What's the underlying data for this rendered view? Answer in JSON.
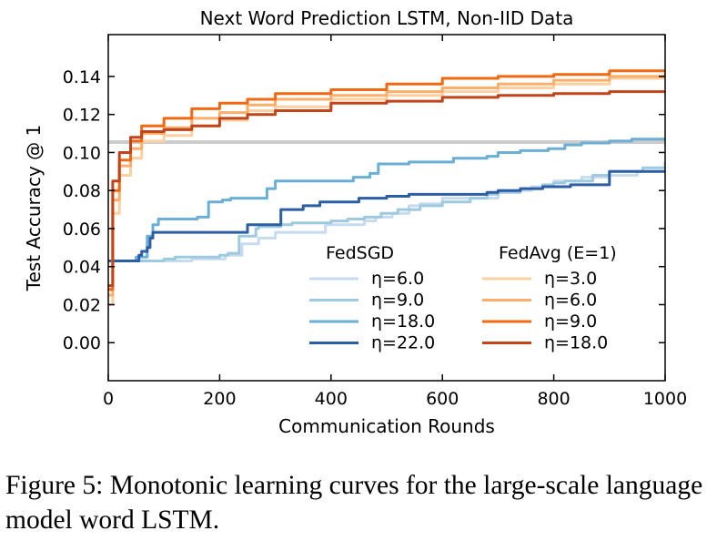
{
  "chart_data": {
    "type": "line",
    "title": "Next Word Prediction LSTM, Non-IID Data",
    "xlabel": "Communication Rounds",
    "ylabel": "Test Accuracy @ 1",
    "xlim": [
      0,
      1000
    ],
    "ylim": [
      -0.02,
      0.162
    ],
    "xticks": [
      0,
      200,
      400,
      600,
      800,
      1000
    ],
    "xtick_labels": [
      "0",
      "200",
      "400",
      "600",
      "800",
      "1000"
    ],
    "yticks": [
      0.0,
      0.02,
      0.04,
      0.06,
      0.08,
      0.1,
      0.12,
      0.14
    ],
    "ytick_labels": [
      "0.00",
      "0.02",
      "0.04",
      "0.06",
      "0.08",
      "0.10",
      "0.12",
      "0.14"
    ],
    "grid": false,
    "legend_placement": "lower-right",
    "reference_line": {
      "y": 0.1055,
      "color": "#cccccc"
    },
    "legend_groups": [
      {
        "title": "FedSGD",
        "series_indices": [
          0,
          1,
          2,
          3
        ]
      },
      {
        "title": "FedAvg (E=1)",
        "series_indices": [
          4,
          5,
          6,
          7
        ]
      }
    ],
    "series": [
      {
        "name": "η=6.0",
        "group": "FedSGD",
        "color": "#c6dbef",
        "x": [
          0,
          12,
          100,
          150,
          200,
          210,
          240,
          270,
          300,
          330,
          390,
          430,
          460,
          480,
          510,
          540,
          560,
          600,
          650,
          700,
          760,
          800,
          850,
          900,
          950,
          1000
        ],
        "y": [
          0.043,
          0.043,
          0.043,
          0.044,
          0.044,
          0.046,
          0.052,
          0.055,
          0.058,
          0.058,
          0.062,
          0.062,
          0.064,
          0.066,
          0.068,
          0.072,
          0.073,
          0.076,
          0.076,
          0.08,
          0.082,
          0.085,
          0.087,
          0.088,
          0.09,
          0.093
        ]
      },
      {
        "name": "η=9.0",
        "group": "FedSGD",
        "color": "#9ecae1",
        "x": [
          0,
          12,
          80,
          100,
          120,
          180,
          190,
          200,
          215,
          235,
          265,
          270,
          310,
          330,
          400,
          430,
          460,
          490,
          520,
          560,
          600,
          650,
          680,
          700,
          740,
          780,
          800,
          820,
          870,
          900,
          960,
          1000
        ],
        "y": [
          0.043,
          0.043,
          0.043,
          0.044,
          0.045,
          0.045,
          0.045,
          0.046,
          0.047,
          0.056,
          0.06,
          0.061,
          0.062,
          0.063,
          0.064,
          0.065,
          0.066,
          0.068,
          0.07,
          0.072,
          0.074,
          0.076,
          0.078,
          0.079,
          0.081,
          0.083,
          0.084,
          0.085,
          0.088,
          0.09,
          0.092,
          0.095
        ]
      },
      {
        "name": "η=18.0",
        "group": "FedSGD",
        "color": "#6baed6",
        "x": [
          0,
          12,
          50,
          70,
          80,
          90,
          110,
          125,
          160,
          180,
          205,
          220,
          285,
          300,
          340,
          380,
          410,
          440,
          470,
          485,
          540,
          600,
          620,
          680,
          700,
          740,
          790,
          820,
          850,
          870,
          900,
          940,
          1000
        ],
        "y": [
          0.043,
          0.043,
          0.045,
          0.056,
          0.062,
          0.065,
          0.065,
          0.065,
          0.066,
          0.074,
          0.075,
          0.076,
          0.081,
          0.085,
          0.085,
          0.085,
          0.085,
          0.087,
          0.089,
          0.094,
          0.095,
          0.095,
          0.097,
          0.098,
          0.1,
          0.101,
          0.102,
          0.104,
          0.105,
          0.105,
          0.106,
          0.107,
          0.107
        ]
      },
      {
        "name": "η=22.0",
        "group": "FedSGD",
        "color": "#2c5ea5",
        "x": [
          0,
          12,
          45,
          55,
          60,
          70,
          75,
          80,
          240,
          250,
          310,
          350,
          380,
          450,
          500,
          540,
          580,
          640,
          680,
          700,
          740,
          780,
          800,
          830,
          860,
          900,
          1000
        ],
        "y": [
          0.043,
          0.043,
          0.043,
          0.046,
          0.048,
          0.05,
          0.055,
          0.058,
          0.058,
          0.062,
          0.07,
          0.072,
          0.074,
          0.076,
          0.077,
          0.078,
          0.078,
          0.078,
          0.079,
          0.08,
          0.081,
          0.082,
          0.082,
          0.083,
          0.083,
          0.09,
          0.09
        ]
      },
      {
        "name": "η=3.0",
        "group": "FedAvg (E=1)",
        "color": "#fdd0a2",
        "x": [
          0,
          8,
          20,
          40,
          60,
          100,
          150,
          200,
          250,
          300,
          400,
          500,
          600,
          700,
          800,
          900,
          1000
        ],
        "y": [
          0.02,
          0.068,
          0.088,
          0.097,
          0.106,
          0.109,
          0.114,
          0.117,
          0.122,
          0.124,
          0.128,
          0.13,
          0.132,
          0.134,
          0.136,
          0.139,
          0.141
        ]
      },
      {
        "name": "η=6.0",
        "group": "FedAvg (E=1)",
        "color": "#fdae6b",
        "x": [
          0,
          8,
          20,
          40,
          60,
          100,
          150,
          200,
          250,
          300,
          400,
          500,
          600,
          700,
          800,
          900,
          1000
        ],
        "y": [
          0.025,
          0.075,
          0.093,
          0.102,
          0.11,
          0.113,
          0.118,
          0.121,
          0.125,
          0.128,
          0.13,
          0.132,
          0.134,
          0.136,
          0.138,
          0.14,
          0.142
        ]
      },
      {
        "name": "η=9.0",
        "group": "FedAvg (E=1)",
        "color": "#f16913",
        "x": [
          0,
          8,
          20,
          40,
          60,
          100,
          150,
          200,
          250,
          300,
          400,
          500,
          600,
          700,
          800,
          900,
          1000
        ],
        "y": [
          0.028,
          0.08,
          0.096,
          0.106,
          0.114,
          0.118,
          0.123,
          0.126,
          0.128,
          0.131,
          0.133,
          0.136,
          0.139,
          0.14,
          0.141,
          0.143,
          0.143
        ]
      },
      {
        "name": "η=18.0",
        "group": "FedAvg (E=1)",
        "color": "#c0451a",
        "x": [
          0,
          8,
          20,
          40,
          60,
          100,
          150,
          200,
          250,
          300,
          400,
          500,
          600,
          700,
          800,
          900,
          1000
        ],
        "y": [
          0.03,
          0.085,
          0.1,
          0.108,
          0.111,
          0.112,
          0.114,
          0.118,
          0.12,
          0.122,
          0.126,
          0.127,
          0.129,
          0.13,
          0.131,
          0.132,
          0.132
        ]
      }
    ]
  },
  "caption": {
    "label": "Figure 5:",
    "text": "Monotonic learning curves for the large-scale language model word LSTM."
  }
}
